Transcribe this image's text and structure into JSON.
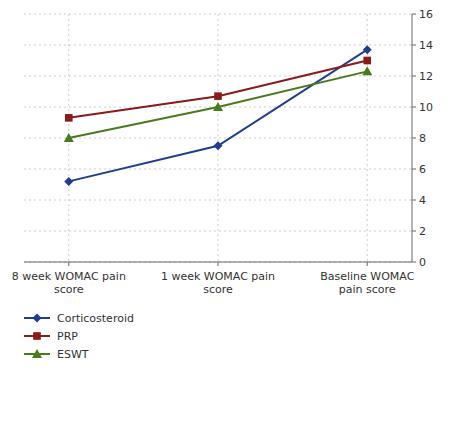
{
  "chart_data": {
    "type": "line",
    "categories": [
      "8 week WOMAC pain\nscore",
      "1 week WOMAC pain\nscore",
      "Baseline WOMAC\npain score"
    ],
    "series": [
      {
        "name": "Corticosteroid",
        "color": "#1f3e8c",
        "marker": "diamond",
        "values": [
          5.2,
          7.5,
          13.7
        ]
      },
      {
        "name": "PRP",
        "color": "#8b1a1a",
        "marker": "square",
        "values": [
          9.3,
          10.7,
          13.0
        ]
      },
      {
        "name": "ESWT",
        "color": "#4a7a1e",
        "marker": "triangle",
        "values": [
          8.0,
          10.0,
          12.3
        ]
      }
    ],
    "ylim": [
      0,
      16
    ],
    "yticks": [
      0,
      2,
      4,
      6,
      8,
      10,
      12,
      14,
      16
    ],
    "grid": true,
    "legend": "bottom"
  }
}
